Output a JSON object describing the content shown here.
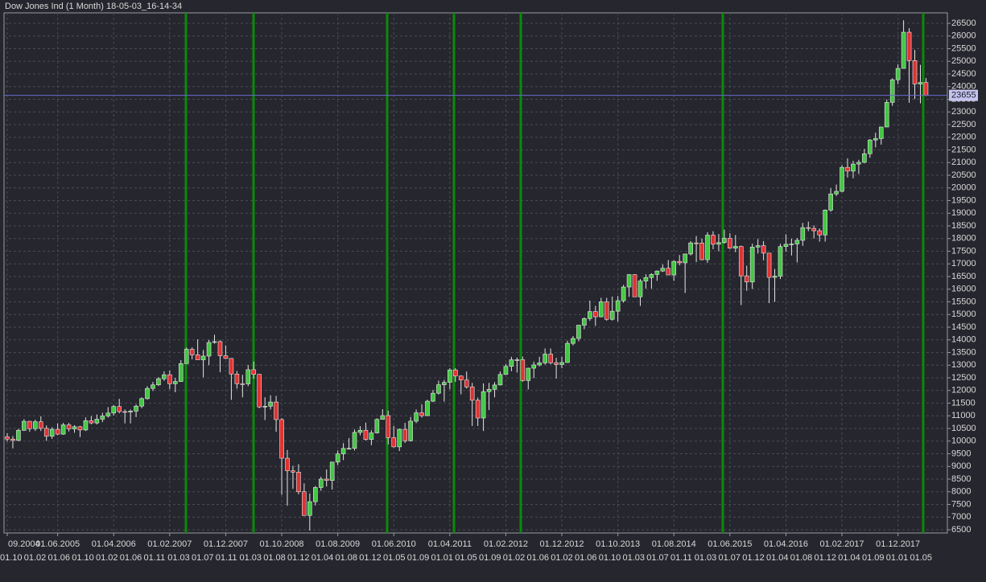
{
  "chart_data": {
    "type": "candlestick",
    "title": "Dow Jones Ind (1 Month) 18-05-03_16-14-34",
    "up_color": "#43c843",
    "down_color": "#e03232",
    "grid": true,
    "ylim": [
      6373,
      26913
    ],
    "yticks": [
      6500,
      7000,
      7500,
      8000,
      8500,
      9000,
      9500,
      10000,
      10500,
      11000,
      11500,
      12000,
      12500,
      13000,
      13500,
      14000,
      14500,
      15000,
      15500,
      16000,
      16500,
      17000,
      17500,
      18000,
      18500,
      19000,
      19500,
      20000,
      20500,
      21000,
      21500,
      22000,
      22500,
      23000,
      23500,
      24000,
      24500,
      25000,
      25500,
      26000,
      26500
    ],
    "categories": [
      "09.2004",
      null,
      null,
      null,
      null,
      null,
      null,
      null,
      null,
      "01.06.2005",
      null,
      null,
      null,
      null,
      null,
      null,
      null,
      null,
      null,
      "01.04.2006",
      null,
      null,
      null,
      null,
      null,
      null,
      null,
      null,
      null,
      "01.02.2007",
      null,
      null,
      null,
      null,
      null,
      null,
      null,
      null,
      null,
      "01.12.2007",
      null,
      null,
      null,
      null,
      null,
      null,
      null,
      null,
      null,
      "01.10.2008",
      null,
      null,
      null,
      null,
      null,
      null,
      null,
      null,
      null,
      "01.08.2009",
      null,
      null,
      null,
      null,
      null,
      null,
      null,
      null,
      null,
      "01.06.2010",
      null,
      null,
      null,
      null,
      null,
      null,
      null,
      null,
      null,
      "01.04.2011",
      null,
      null,
      null,
      null,
      null,
      null,
      null,
      null,
      null,
      "01.02.2012",
      null,
      null,
      null,
      null,
      null,
      null,
      null,
      null,
      null,
      "01.12.2012",
      null,
      null,
      null,
      null,
      null,
      null,
      null,
      null,
      null,
      "01.10.2013",
      null,
      null,
      null,
      null,
      null,
      null,
      null,
      null,
      null,
      "01.08.2014",
      null,
      null,
      null,
      null,
      null,
      null,
      null,
      null,
      null,
      "01.06.2015",
      null,
      null,
      null,
      null,
      null,
      null,
      null,
      null,
      null,
      "01.04.2016",
      null,
      null,
      null,
      null,
      null,
      null,
      null,
      null,
      null,
      "01.02.2017",
      null,
      null,
      null,
      null,
      null,
      null,
      null,
      null,
      null,
      "01.12.2017",
      null,
      null,
      null,
      null,
      null
    ],
    "x_sublabels": [
      "01.10",
      "01.02",
      "01.06",
      "01.10",
      "01.02",
      "01.06",
      "01.11",
      "01.03",
      "01.07",
      "01.11",
      "01.03",
      "01.08",
      "01.12",
      "01.04",
      "01.08",
      "01.12",
      "01.05",
      "01.09",
      "01.01",
      "01.05",
      "01.09",
      "01.02",
      "01.06",
      "01.02",
      "01.06",
      "01.10",
      "01.03",
      "01.07",
      "01.11",
      "01.03",
      "01.07",
      "01.12",
      "01.04",
      "01.08",
      "01.12",
      "01.04",
      "01.09",
      "01.01",
      "01.05"
    ],
    "ohlc": [
      [
        10170,
        10310,
        9980,
        10080
      ],
      [
        10080,
        10200,
        9710,
        10027
      ],
      [
        10027,
        10490,
        10000,
        10428
      ],
      [
        10428,
        10870,
        10400,
        10783
      ],
      [
        10783,
        10800,
        10370,
        10490
      ],
      [
        10490,
        10850,
        10400,
        10766
      ],
      [
        10766,
        10980,
        10400,
        10504
      ],
      [
        10504,
        10620,
        10010,
        10193
      ],
      [
        10193,
        10550,
        10090,
        10467
      ],
      [
        10467,
        10700,
        10230,
        10275
      ],
      [
        10275,
        10720,
        10250,
        10641
      ],
      [
        10641,
        10720,
        10380,
        10482
      ],
      [
        10482,
        10630,
        10330,
        10569
      ],
      [
        10569,
        10600,
        10160,
        10440
      ],
      [
        10440,
        10940,
        10400,
        10806
      ],
      [
        10806,
        10990,
        10660,
        10718
      ],
      [
        10718,
        11050,
        10660,
        10865
      ],
      [
        10865,
        11120,
        10750,
        10993
      ],
      [
        10993,
        11340,
        10930,
        11109
      ],
      [
        11109,
        11420,
        11010,
        11367
      ],
      [
        11367,
        11670,
        11100,
        11168
      ],
      [
        11168,
        11250,
        10700,
        11150
      ],
      [
        11150,
        11250,
        10700,
        11186
      ],
      [
        11186,
        11450,
        10950,
        11381
      ],
      [
        11381,
        11730,
        11300,
        11679
      ],
      [
        11679,
        12170,
        11640,
        12081
      ],
      [
        12081,
        12340,
        11980,
        12222
      ],
      [
        12222,
        12530,
        12180,
        12463
      ],
      [
        12463,
        12760,
        12380,
        12622
      ],
      [
        12622,
        12790,
        12050,
        12269
      ],
      [
        12269,
        12500,
        11930,
        12354
      ],
      [
        12354,
        13200,
        12350,
        13063
      ],
      [
        13063,
        13690,
        13050,
        13628
      ],
      [
        13628,
        13700,
        13230,
        13409
      ],
      [
        13409,
        14020,
        13220,
        13212
      ],
      [
        13212,
        13600,
        12520,
        13358
      ],
      [
        13358,
        14000,
        13000,
        13896
      ],
      [
        13896,
        14200,
        13850,
        13930
      ],
      [
        13930,
        13980,
        12720,
        13372
      ],
      [
        13372,
        13780,
        13240,
        13265
      ],
      [
        13265,
        13280,
        11630,
        12650
      ],
      [
        12650,
        12770,
        12070,
        12266
      ],
      [
        12266,
        12620,
        11730,
        12263
      ],
      [
        12263,
        13010,
        12170,
        12820
      ],
      [
        12820,
        13140,
        12460,
        12638
      ],
      [
        12638,
        12650,
        11300,
        11350
      ],
      [
        11350,
        11730,
        10830,
        11378
      ],
      [
        11378,
        11810,
        11250,
        11544
      ],
      [
        11544,
        11790,
        10370,
        10851
      ],
      [
        10851,
        10910,
        7880,
        9325
      ],
      [
        9325,
        9650,
        7450,
        8829
      ],
      [
        8829,
        9030,
        8120,
        8776
      ],
      [
        8776,
        9090,
        7900,
        8001
      ],
      [
        8001,
        8330,
        7050,
        7063
      ],
      [
        7063,
        7930,
        6470,
        7609
      ],
      [
        7609,
        8230,
        7460,
        8168
      ],
      [
        8168,
        8590,
        8040,
        8500
      ],
      [
        8500,
        8880,
        8210,
        8447
      ],
      [
        8447,
        9190,
        8090,
        9172
      ],
      [
        9172,
        9630,
        9050,
        9496
      ],
      [
        9496,
        9920,
        9250,
        9712
      ],
      [
        9712,
        10120,
        9670,
        9713
      ],
      [
        9713,
        10460,
        9630,
        10345
      ],
      [
        10345,
        10590,
        10230,
        10428
      ],
      [
        10428,
        10730,
        10020,
        10067
      ],
      [
        10067,
        10430,
        9840,
        10325
      ],
      [
        10325,
        10900,
        10300,
        10857
      ],
      [
        10857,
        11260,
        10850,
        11009
      ],
      [
        11009,
        11200,
        9870,
        10137
      ],
      [
        10137,
        10600,
        9750,
        9774
      ],
      [
        9774,
        10500,
        9610,
        10466
      ],
      [
        10466,
        10720,
        9930,
        10015
      ],
      [
        10015,
        10950,
        9990,
        10788
      ],
      [
        10788,
        11250,
        10710,
        11118
      ],
      [
        11118,
        11450,
        10930,
        11006
      ],
      [
        11006,
        11630,
        10990,
        11578
      ],
      [
        11578,
        12020,
        11540,
        11892
      ],
      [
        11892,
        12390,
        11840,
        12226
      ],
      [
        12226,
        12420,
        11560,
        12320
      ],
      [
        12320,
        12880,
        12050,
        12811
      ],
      [
        12811,
        12880,
        12340,
        12570
      ],
      [
        12570,
        12600,
        11850,
        12414
      ],
      [
        12414,
        12750,
        12080,
        12143
      ],
      [
        12143,
        12300,
        10600,
        11614
      ],
      [
        11614,
        11720,
        10600,
        10913
      ],
      [
        10913,
        12280,
        10400,
        11955
      ],
      [
        11955,
        12300,
        11230,
        12046
      ],
      [
        12046,
        12330,
        11730,
        12218
      ],
      [
        12218,
        12750,
        12200,
        12633
      ],
      [
        12633,
        13050,
        12620,
        12952
      ],
      [
        12952,
        13330,
        12760,
        13212
      ],
      [
        13212,
        13300,
        12710,
        13214
      ],
      [
        13214,
        13340,
        12350,
        12393
      ],
      [
        12393,
        12900,
        12040,
        12880
      ],
      [
        12880,
        13140,
        12490,
        13009
      ],
      [
        13009,
        13330,
        12950,
        13091
      ],
      [
        13091,
        13660,
        13020,
        13437
      ],
      [
        13437,
        13660,
        13040,
        13096
      ],
      [
        13096,
        13290,
        12470,
        13026
      ],
      [
        13026,
        13330,
        12880,
        13104
      ],
      [
        13104,
        13970,
        13100,
        13861
      ],
      [
        13861,
        14150,
        13780,
        14054
      ],
      [
        14054,
        14590,
        13940,
        14579
      ],
      [
        14579,
        14890,
        14420,
        14840
      ],
      [
        14840,
        15550,
        14750,
        15116
      ],
      [
        15116,
        15340,
        14550,
        14910
      ],
      [
        14910,
        15660,
        14890,
        15500
      ],
      [
        15500,
        15660,
        14760,
        14810
      ],
      [
        14810,
        15710,
        14760,
        15130
      ],
      [
        15130,
        15730,
        14720,
        15546
      ],
      [
        15546,
        16170,
        15470,
        16086
      ],
      [
        16086,
        16590,
        15700,
        16577
      ],
      [
        16577,
        16590,
        15690,
        15699
      ],
      [
        15699,
        16400,
        15340,
        16322
      ],
      [
        16322,
        16590,
        16020,
        16458
      ],
      [
        16458,
        16630,
        16020,
        16581
      ],
      [
        16581,
        16740,
        16330,
        16717
      ],
      [
        16717,
        16980,
        16680,
        16827
      ],
      [
        16827,
        17150,
        16560,
        16563
      ],
      [
        16563,
        17140,
        16330,
        17098
      ],
      [
        17098,
        17350,
        16940,
        17043
      ],
      [
        17043,
        17400,
        15850,
        17391
      ],
      [
        17391,
        17900,
        17330,
        17828
      ],
      [
        17828,
        18100,
        17070,
        17823
      ],
      [
        17823,
        18000,
        17140,
        17165
      ],
      [
        17165,
        18250,
        17040,
        18133
      ],
      [
        18133,
        18290,
        17580,
        17776
      ],
      [
        17776,
        18180,
        17500,
        17841
      ],
      [
        17841,
        18350,
        17800,
        18011
      ],
      [
        18011,
        18210,
        17590,
        17620
      ],
      [
        17620,
        18140,
        17460,
        17690
      ],
      [
        17690,
        17720,
        15370,
        16528
      ],
      [
        16528,
        16930,
        15940,
        16285
      ],
      [
        16285,
        17800,
        16010,
        17664
      ],
      [
        17664,
        17980,
        17410,
        17720
      ],
      [
        17720,
        17900,
        17140,
        17425
      ],
      [
        17425,
        17430,
        15450,
        16466
      ],
      [
        16466,
        16800,
        15500,
        16517
      ],
      [
        16517,
        17790,
        16400,
        17685
      ],
      [
        17685,
        18170,
        17480,
        17774
      ],
      [
        17774,
        18000,
        17330,
        17787
      ],
      [
        17787,
        18020,
        17060,
        17930
      ],
      [
        17930,
        18620,
        17710,
        18432
      ],
      [
        18432,
        18670,
        18290,
        18401
      ],
      [
        18401,
        18520,
        18000,
        18308
      ],
      [
        18308,
        18400,
        17880,
        18142
      ],
      [
        18142,
        19150,
        17880,
        19124
      ],
      [
        19124,
        19990,
        19060,
        19763
      ],
      [
        19763,
        20130,
        19680,
        19864
      ],
      [
        19864,
        20900,
        19830,
        20812
      ],
      [
        20812,
        21170,
        20410,
        20663
      ],
      [
        20663,
        21070,
        20380,
        20941
      ],
      [
        20941,
        21110,
        20550,
        21009
      ],
      [
        21009,
        21540,
        20970,
        21350
      ],
      [
        21350,
        21930,
        21190,
        21891
      ],
      [
        21891,
        22180,
        21600,
        21948
      ],
      [
        21948,
        22420,
        21710,
        22405
      ],
      [
        22405,
        23490,
        22420,
        23377
      ],
      [
        23377,
        24330,
        23240,
        24272
      ],
      [
        24272,
        24880,
        24100,
        24719
      ],
      [
        24719,
        26620,
        24740,
        26149
      ],
      [
        26149,
        26310,
        23360,
        25029
      ],
      [
        25029,
        25450,
        23510,
        24103
      ],
      [
        24103,
        24860,
        23340,
        24163
      ],
      [
        24163,
        24340,
        23630,
        23655
      ]
    ]
  }
}
